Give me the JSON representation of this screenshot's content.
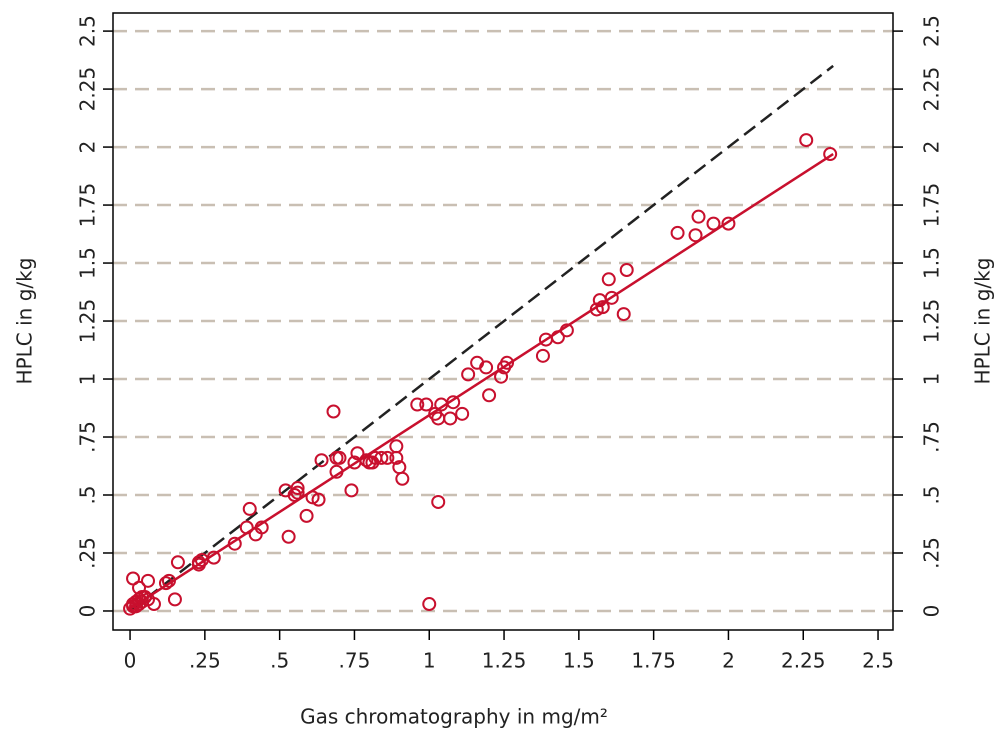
{
  "chart_data": {
    "type": "scatter",
    "xlabel": "Gas chromatography in mg/m²",
    "ylabel": "HPLC in g/kg",
    "y2label": "HPLC in g/kg",
    "xlim": [
      -0.057,
      2.55
    ],
    "ylim": [
      -0.082,
      2.578
    ],
    "y2lim": [
      -0.082,
      2.578
    ],
    "xticks": [
      0,
      {
        "value": 0.25,
        "label": ".25"
      },
      {
        "value": 0.5,
        "label": ".5"
      },
      {
        "value": 0.75,
        "label": ".75"
      },
      1,
      1.25,
      1.5,
      1.75,
      2,
      2.25,
      2.5
    ],
    "yticks": [
      0,
      {
        "value": 0.25,
        "label": ".25"
      },
      {
        "value": 0.5,
        "label": ".5"
      },
      {
        "value": 0.75,
        "label": ".75"
      },
      1,
      1.25,
      1.5,
      1.75,
      2,
      2.25,
      2.5
    ],
    "y2ticks": [
      0,
      {
        "value": 0.25,
        "label": ".25"
      },
      {
        "value": 0.5,
        "label": ".5"
      },
      {
        "value": 0.75,
        "label": ".75"
      },
      1,
      1.25,
      1.5,
      1.75,
      2,
      2.25,
      2.5
    ],
    "grid": true,
    "grid_color": "#c9bfb3",
    "points": {
      "color": "#c8102e",
      "x": [
        0,
        0.01,
        0.01,
        0.02,
        0.02,
        0.03,
        0.04,
        0.05,
        0.03,
        0.04,
        0.06,
        0.01,
        0.06,
        0.08,
        0.03,
        0.12,
        0.13,
        0.15,
        0.16,
        0.23,
        0.23,
        0.24,
        0.28,
        0.35,
        0.39,
        0.4,
        0.42,
        0.44,
        0.52,
        0.53,
        0.55,
        0.56,
        0.56,
        0.59,
        0.61,
        0.63,
        0.64,
        0.68,
        0.69,
        0.69,
        0.7,
        0.74,
        0.75,
        0.76,
        0.79,
        0.8,
        0.81,
        0.82,
        0.84,
        0.86,
        0.89,
        0.89,
        0.9,
        0.91,
        0.96,
        1.0,
        0.99,
        1.02,
        1.03,
        1.03,
        1.04,
        1.07,
        1.08,
        1.11,
        1.13,
        1.16,
        1.19,
        1.2,
        1.24,
        1.25,
        1.26,
        1.38,
        1.39,
        1.43,
        1.46,
        1.56,
        1.57,
        1.58,
        1.6,
        1.61,
        1.65,
        1.66,
        1.83,
        1.89,
        1.9,
        1.95,
        2.0,
        2.26,
        2.34
      ],
      "values": [
        0.01,
        0.02,
        0.03,
        0.04,
        0.02,
        0.05,
        0.04,
        0.06,
        0.03,
        0.06,
        0.05,
        0.14,
        0.13,
        0.03,
        0.1,
        0.12,
        0.13,
        0.05,
        0.21,
        0.2,
        0.21,
        0.22,
        0.23,
        0.29,
        0.36,
        0.44,
        0.33,
        0.36,
        0.52,
        0.32,
        0.5,
        0.53,
        0.51,
        0.41,
        0.49,
        0.48,
        0.65,
        0.86,
        0.6,
        0.66,
        0.66,
        0.52,
        0.64,
        0.68,
        0.65,
        0.64,
        0.64,
        0.66,
        0.66,
        0.66,
        0.71,
        0.66,
        0.62,
        0.57,
        0.89,
        0.03,
        0.89,
        0.85,
        0.47,
        0.83,
        0.89,
        0.83,
        0.9,
        0.85,
        1.02,
        1.07,
        1.05,
        0.93,
        1.01,
        1.05,
        1.07,
        1.1,
        1.17,
        1.18,
        1.21,
        1.3,
        1.34,
        1.31,
        1.43,
        1.35,
        1.28,
        1.47,
        1.63,
        1.62,
        1.7,
        1.67,
        1.67,
        2.03,
        1.97
      ]
    },
    "fit_line": {
      "color": "#c8102e",
      "x": [
        0,
        2.35
      ],
      "values": [
        0.01,
        1.97
      ]
    },
    "identity_line": {
      "color": "#222222",
      "x": [
        0,
        2.35
      ],
      "values": [
        0,
        2.35
      ]
    }
  }
}
